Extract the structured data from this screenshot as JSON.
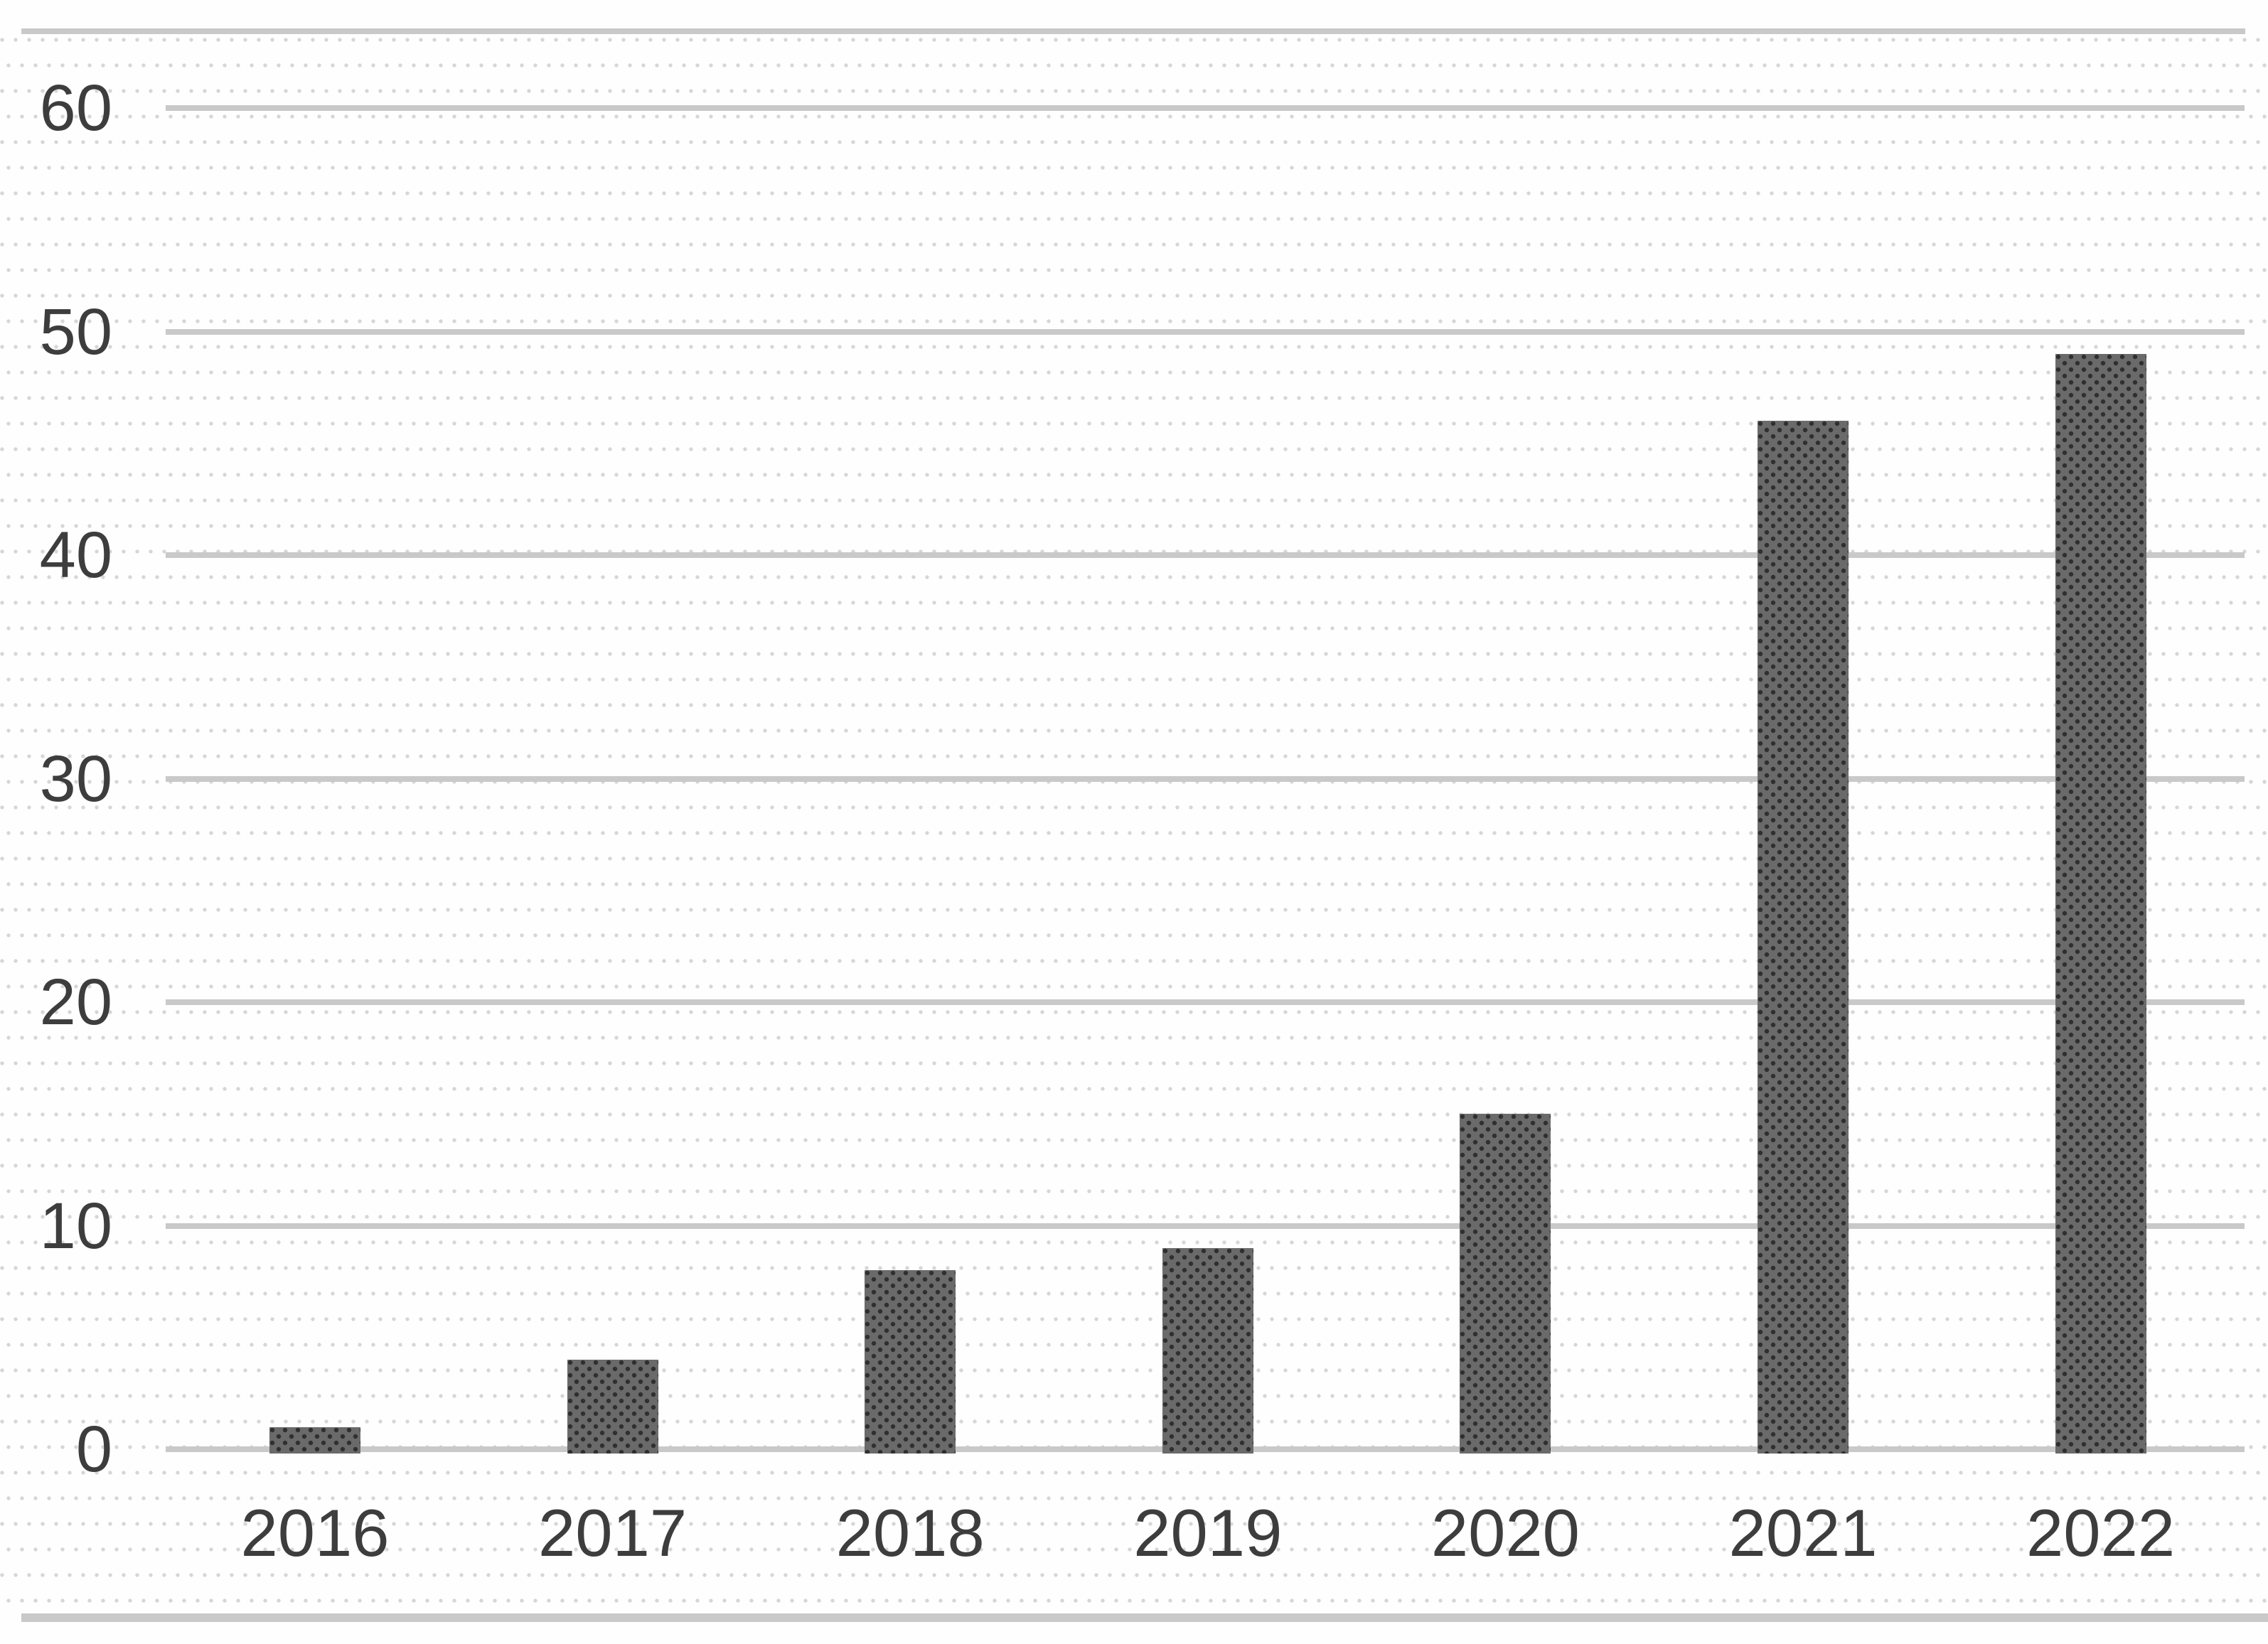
{
  "chart_data": {
    "type": "bar",
    "title": "",
    "xlabel": "",
    "ylabel": "",
    "categories": [
      "2016",
      "2017",
      "2018",
      "2019",
      "2020",
      "2021",
      "2022"
    ],
    "values": [
      1,
      4,
      8,
      9,
      15,
      46,
      49
    ],
    "y_ticks": [
      "0",
      "10",
      "20",
      "30",
      "40",
      "50",
      "60"
    ],
    "y_tick_values": [
      0,
      10,
      20,
      30,
      40,
      50,
      60
    ],
    "ylim": [
      0,
      60
    ],
    "grid": "horizontal-only",
    "legend": "none",
    "series_name": "",
    "colors": {
      "bar_fill": "#6a6a6a",
      "bar_stipple_dot": "#2f2f2f",
      "gridline": "#c9c9c9",
      "axis_label_text": "#3d3d3d",
      "background": "#fefefe",
      "background_dot": "#d6d6d6"
    }
  }
}
